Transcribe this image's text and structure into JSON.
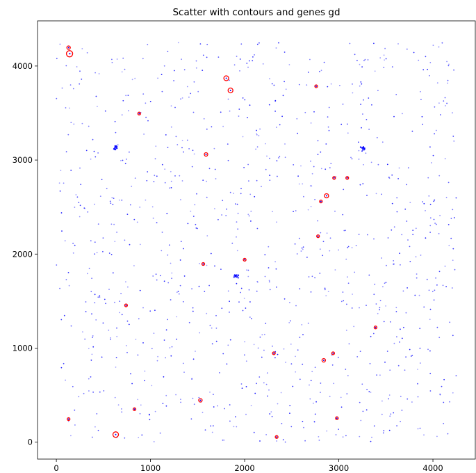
{
  "chart_data": {
    "type": "scatter",
    "title": "Scatter with contours and genes gd",
    "xlabel": "",
    "ylabel": "",
    "xlim": [
      -200,
      4450
    ],
    "ylim": [
      -180,
      4480
    ],
    "xticks": [
      0,
      1000,
      2000,
      3000,
      4000
    ],
    "yticks": [
      0,
      1000,
      2000,
      3000,
      4000
    ],
    "grid": false,
    "colors": {
      "points": "#0000ff",
      "highlight": "#ff0000"
    },
    "background_points": {
      "count": 1000,
      "x_range": [
        0,
        4250
      ],
      "y_range": [
        0,
        4250
      ],
      "description_color": "blue"
    },
    "clusters": [
      {
        "x": 1910,
        "y": 1760
      },
      {
        "x": 625,
        "y": 3130
      },
      {
        "x": 3250,
        "y": 3120
      }
    ],
    "series": [
      {
        "values": [
          {
            "x": 130,
            "y": 4195,
            "r": 2.5
          },
          {
            "x": 140,
            "y": 4130,
            "r": 4.5
          },
          {
            "x": 880,
            "y": 3495,
            "r": 2
          },
          {
            "x": 1805,
            "y": 3870,
            "r": 3.5
          },
          {
            "x": 1850,
            "y": 3740,
            "r": 3.5
          },
          {
            "x": 2760,
            "y": 3785,
            "r": 2
          },
          {
            "x": 1590,
            "y": 3060,
            "r": 2.5
          },
          {
            "x": 2950,
            "y": 2810,
            "r": 2
          },
          {
            "x": 3090,
            "y": 2810,
            "r": 2
          },
          {
            "x": 2870,
            "y": 2620,
            "r": 3
          },
          {
            "x": 2810,
            "y": 2560,
            "r": 2
          },
          {
            "x": 2780,
            "y": 2190,
            "r": 2
          },
          {
            "x": 2000,
            "y": 1940,
            "r": 2
          },
          {
            "x": 1560,
            "y": 1895,
            "r": 2
          },
          {
            "x": 740,
            "y": 1455,
            "r": 2
          },
          {
            "x": 3390,
            "y": 1220,
            "r": 2
          },
          {
            "x": 2310,
            "y": 945,
            "r": 2
          },
          {
            "x": 2940,
            "y": 945,
            "r": 2
          },
          {
            "x": 2840,
            "y": 870,
            "r": 2.5
          },
          {
            "x": 1530,
            "y": 445,
            "r": 2.5
          },
          {
            "x": 830,
            "y": 350,
            "r": 2
          },
          {
            "x": 130,
            "y": 245,
            "r": 2
          },
          {
            "x": 2980,
            "y": 255,
            "r": 2
          },
          {
            "x": 630,
            "y": 80,
            "r": 4
          },
          {
            "x": 2340,
            "y": 55,
            "r": 2
          }
        ]
      }
    ]
  }
}
